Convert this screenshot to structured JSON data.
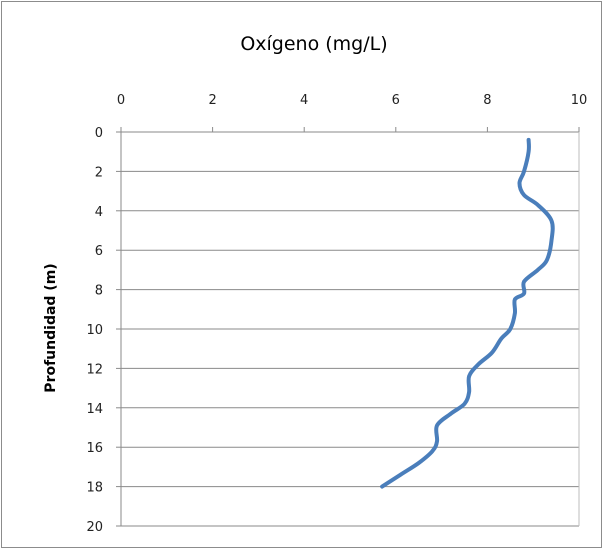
{
  "chart_data": {
    "type": "line",
    "title": "Oxígeno (mg/L)",
    "xlabel": "",
    "ylabel": "Profundidad (m)",
    "xlim": [
      0,
      10
    ],
    "ylim": [
      0,
      20
    ],
    "y_reversed": true,
    "x_axis_position": "top",
    "x_ticks": [
      0,
      2,
      4,
      6,
      8,
      10
    ],
    "y_ticks": [
      0,
      2,
      4,
      6,
      8,
      10,
      12,
      14,
      16,
      18,
      20
    ],
    "x_tick_labels": [
      "0",
      "2",
      "4",
      "6",
      "8",
      "10"
    ],
    "y_tick_labels": [
      "0",
      "2",
      "4",
      "6",
      "8",
      "10",
      "12",
      "14",
      "16",
      "18",
      "20"
    ],
    "grid": "horizontal",
    "legend": "none",
    "series": [
      {
        "color": "#4a7ebb",
        "points": [
          [
            8.9,
            0.4
          ],
          [
            8.9,
            1.0
          ],
          [
            8.8,
            2.0
          ],
          [
            8.7,
            2.6
          ],
          [
            8.8,
            3.2
          ],
          [
            9.1,
            3.7
          ],
          [
            9.4,
            4.5
          ],
          [
            9.4,
            5.5
          ],
          [
            9.3,
            6.5
          ],
          [
            9.1,
            7.0
          ],
          [
            8.8,
            7.6
          ],
          [
            8.8,
            8.2
          ],
          [
            8.6,
            8.5
          ],
          [
            8.6,
            9.2
          ],
          [
            8.5,
            10.0
          ],
          [
            8.3,
            10.5
          ],
          [
            8.1,
            11.2
          ],
          [
            7.8,
            11.8
          ],
          [
            7.6,
            12.4
          ],
          [
            7.6,
            13.2
          ],
          [
            7.5,
            13.8
          ],
          [
            7.2,
            14.3
          ],
          [
            6.9,
            14.9
          ],
          [
            6.9,
            15.7
          ],
          [
            6.8,
            16.2
          ],
          [
            6.5,
            16.8
          ],
          [
            6.1,
            17.4
          ],
          [
            5.7,
            18.0
          ]
        ]
      }
    ]
  }
}
